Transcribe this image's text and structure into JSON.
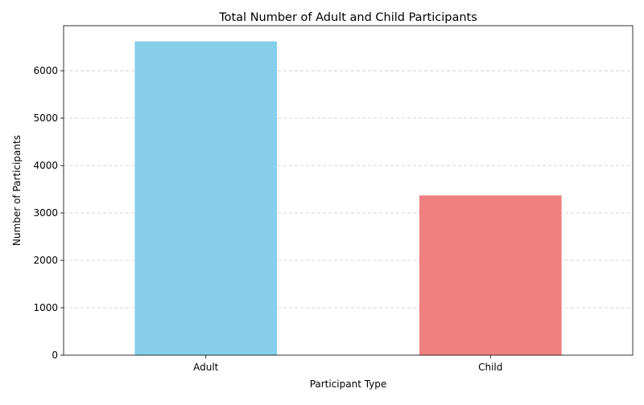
{
  "chart_data": {
    "type": "bar",
    "title": "Total Number of Adult and Child Participants",
    "xlabel": "Participant Type",
    "ylabel": "Number of Participants",
    "categories": [
      "Adult",
      "Child"
    ],
    "values": [
      6620,
      3370
    ],
    "colors": [
      "#87ceeb",
      "#f08080"
    ],
    "ylim": [
      0,
      6950
    ],
    "yticks": [
      0,
      1000,
      2000,
      3000,
      4000,
      5000,
      6000
    ],
    "grid": "y-dashed",
    "legend": "none"
  }
}
